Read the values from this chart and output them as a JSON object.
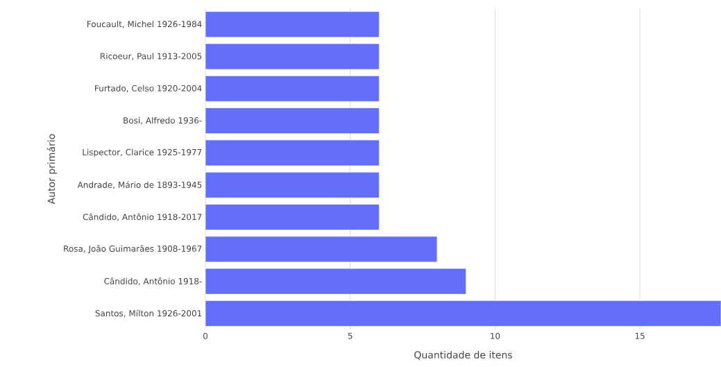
{
  "chart_data": {
    "type": "bar",
    "orientation": "horizontal",
    "xlabel": "Quantidade de itens",
    "ylabel": "Autor primário",
    "categories": [
      "Foucault, Michel 1926-1984",
      "Ricoeur, Paul 1913-2005",
      "Furtado, Celso 1920-2004",
      "Bosi, Alfredo 1936-",
      "Lispector, Clarice 1925-1977",
      "Andrade, Mário de 1893-1945",
      "Cândido, Antônio 1918-2017",
      "Rosa, João Guimarães 1908-1967",
      "Cândido, Antônio 1918-",
      "Santos, Mílton 1926-2001"
    ],
    "values": [
      6,
      6,
      6,
      6,
      6,
      6,
      6,
      8,
      9,
      17.8
    ],
    "color": "#636efa",
    "xlim": [
      0,
      17.8
    ],
    "xticks": [
      0,
      5,
      10,
      15
    ],
    "grid": "x"
  }
}
